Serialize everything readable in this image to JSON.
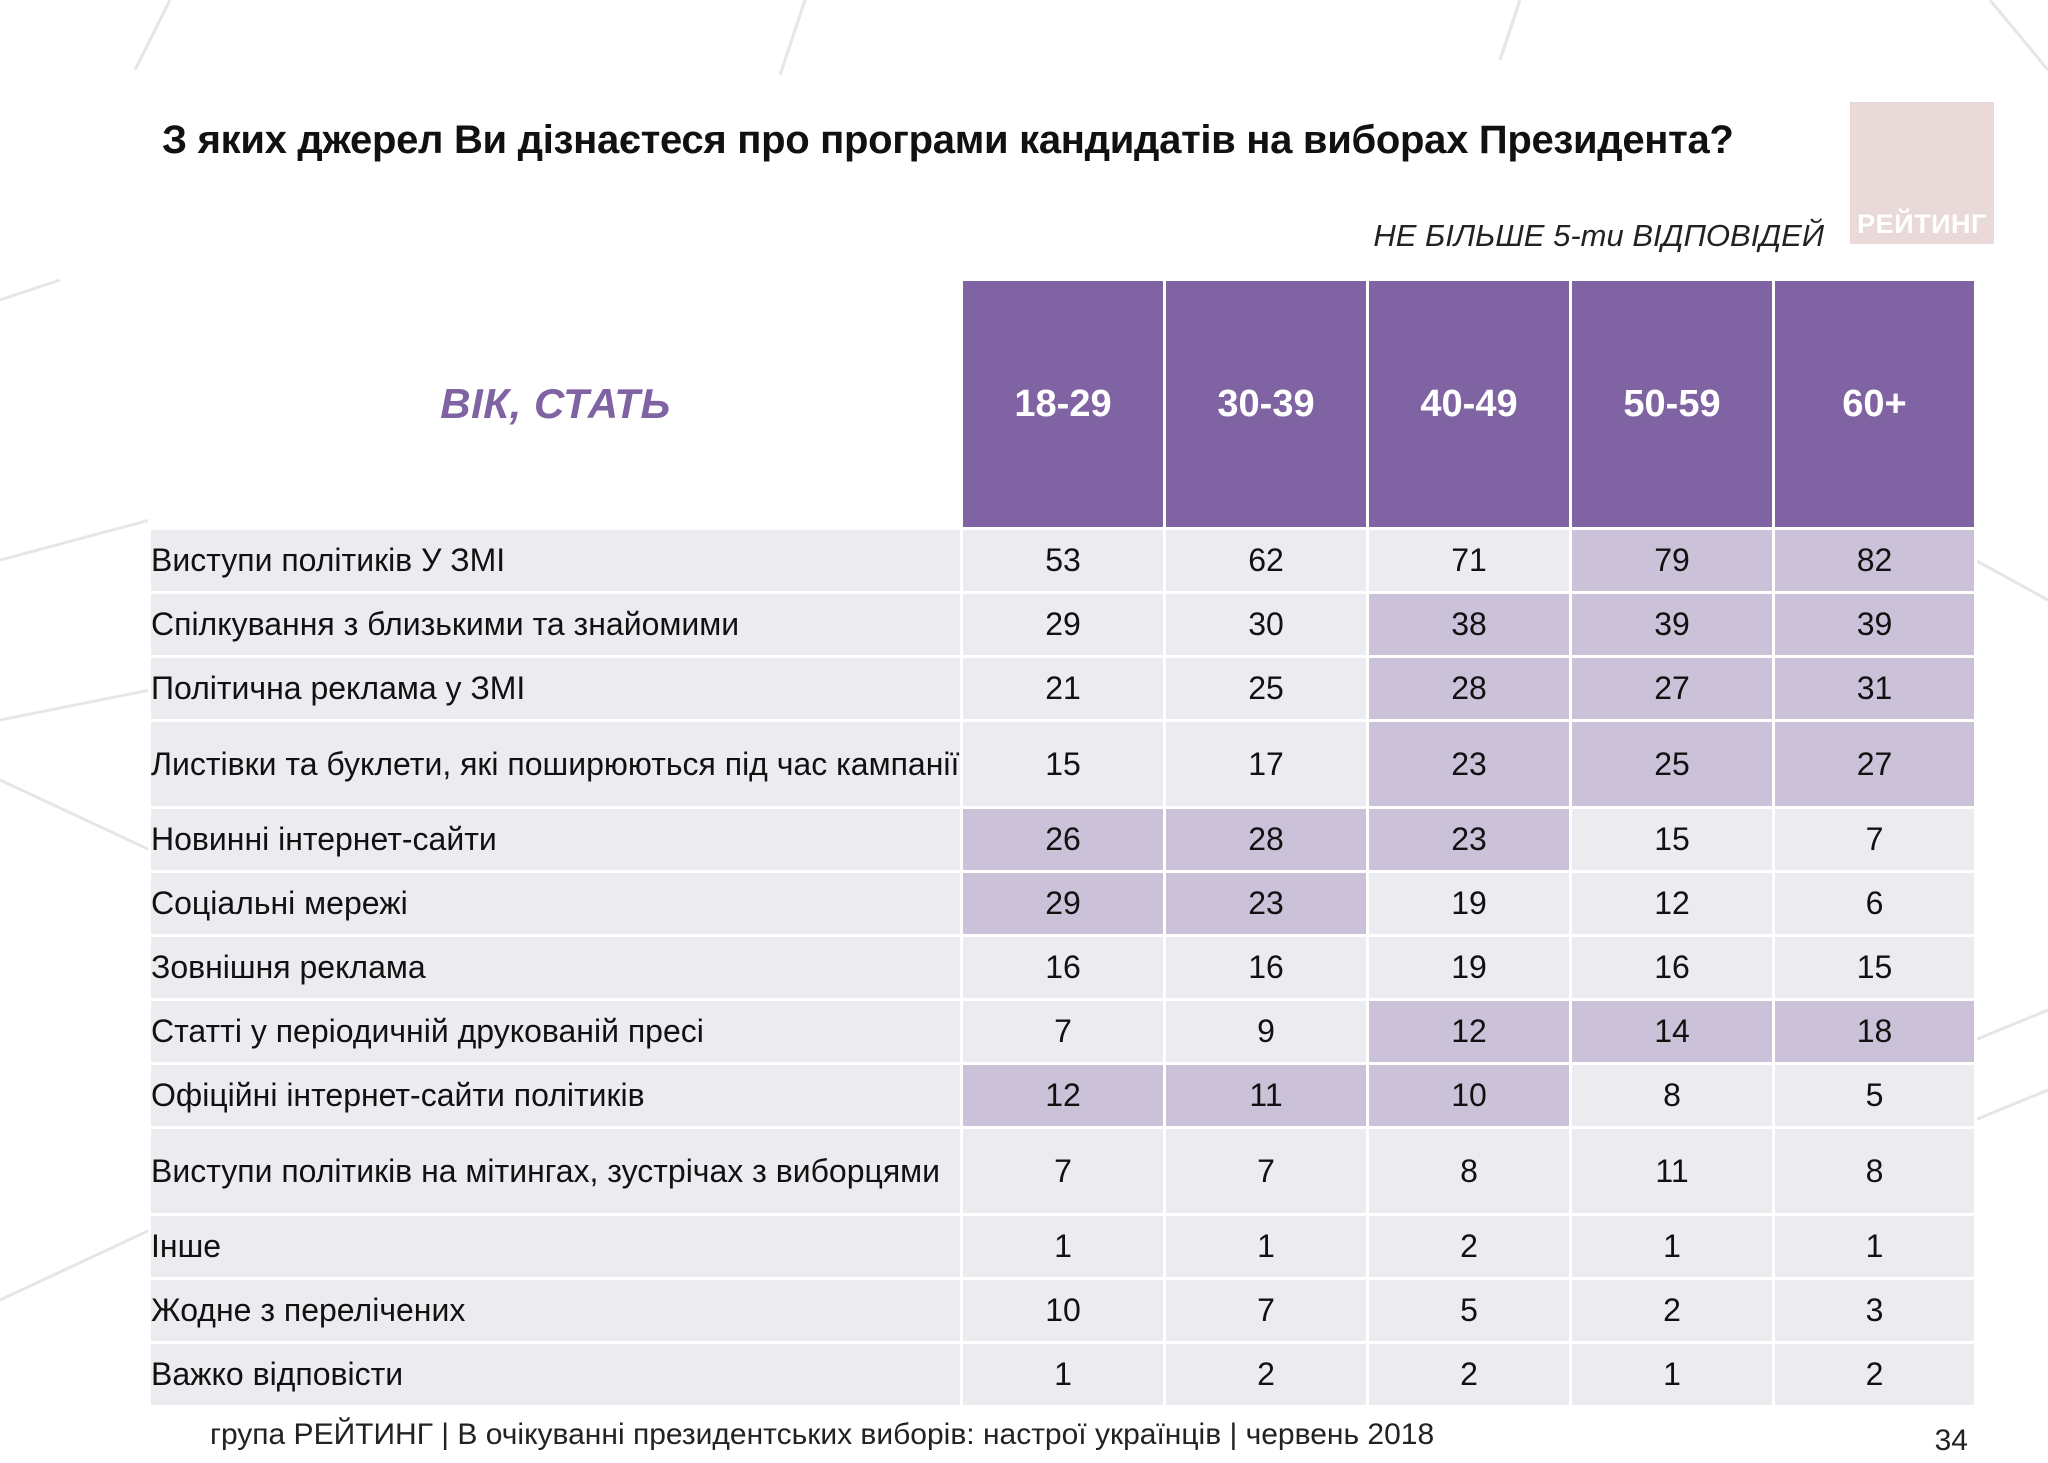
{
  "slide": {
    "title": "З яких джерел Ви дізнаєтеся про програми кандидатів на виборах Президента?",
    "note": "НЕ БІЛЬШЕ 5-ти ВІДПОВІДЕЙ",
    "logo_text": "РЕЙТИНГ",
    "footer": "група РЕЙТИНГ  | В очікуванні президентських виборів: настрої українців |  червень 2018",
    "page_number": "34"
  },
  "table": {
    "corner_label": "ВІК, СТАТЬ",
    "columns": [
      "18-29",
      "30-39",
      "40-49",
      "50-59",
      "60+"
    ],
    "rows": [
      {
        "label": "Виступи політиків У ЗМІ",
        "values": [
          "53",
          "62",
          "71",
          "79",
          "82"
        ],
        "highlight": [
          false,
          false,
          false,
          true,
          true
        ],
        "tall": false
      },
      {
        "label": "Спілкування з близькими та знайомими",
        "values": [
          "29",
          "30",
          "38",
          "39",
          "39"
        ],
        "highlight": [
          false,
          false,
          true,
          true,
          true
        ],
        "tall": false
      },
      {
        "label": "Політична реклама у ЗМІ",
        "values": [
          "21",
          "25",
          "28",
          "27",
          "31"
        ],
        "highlight": [
          false,
          false,
          true,
          true,
          true
        ],
        "tall": false
      },
      {
        "label": "Листівки та буклети, які поширюються під час кампанії",
        "values": [
          "15",
          "17",
          "23",
          "25",
          "27"
        ],
        "highlight": [
          false,
          false,
          true,
          true,
          true
        ],
        "tall": true
      },
      {
        "label": "Новинні інтернет-сайти",
        "values": [
          "26",
          "28",
          "23",
          "15",
          "7"
        ],
        "highlight": [
          true,
          true,
          true,
          false,
          false
        ],
        "tall": false
      },
      {
        "label": "Соціальні мережі",
        "values": [
          "29",
          "23",
          "19",
          "12",
          "6"
        ],
        "highlight": [
          true,
          true,
          false,
          false,
          false
        ],
        "tall": false
      },
      {
        "label": "Зовнішня реклама",
        "values": [
          "16",
          "16",
          "19",
          "16",
          "15"
        ],
        "highlight": [
          false,
          false,
          false,
          false,
          false
        ],
        "tall": false
      },
      {
        "label": "Статті у періодичній друкованій пресі",
        "values": [
          "7",
          "9",
          "12",
          "14",
          "18"
        ],
        "highlight": [
          false,
          false,
          true,
          true,
          true
        ],
        "tall": false
      },
      {
        "label": "Офіційні інтернет-сайти політиків",
        "values": [
          "12",
          "11",
          "10",
          "8",
          "5"
        ],
        "highlight": [
          true,
          true,
          true,
          false,
          false
        ],
        "tall": false
      },
      {
        "label": "Виступи політиків на мітингах, зустрічах з виборцями",
        "values": [
          "7",
          "7",
          "8",
          "11",
          "8"
        ],
        "highlight": [
          false,
          false,
          false,
          false,
          false
        ],
        "tall": true
      },
      {
        "label": "Інше",
        "values": [
          "1",
          "1",
          "2",
          "1",
          "1"
        ],
        "highlight": [
          false,
          false,
          false,
          false,
          false
        ],
        "tall": false
      },
      {
        "label": "Жодне з перелічених",
        "values": [
          "10",
          "7",
          "5",
          "2",
          "3"
        ],
        "highlight": [
          false,
          false,
          false,
          false,
          false
        ],
        "tall": false
      },
      {
        "label": "Важко відповісти",
        "values": [
          "1",
          "2",
          "2",
          "1",
          "2"
        ],
        "highlight": [
          false,
          false,
          false,
          false,
          false
        ],
        "tall": false
      }
    ]
  },
  "colors": {
    "header_bg": "#8063a2",
    "corner_text": "#7f63a2",
    "cell_bg": "#ecebef",
    "highlight_bg": "#cbc2da",
    "logo_bg": "#ead9d9"
  }
}
